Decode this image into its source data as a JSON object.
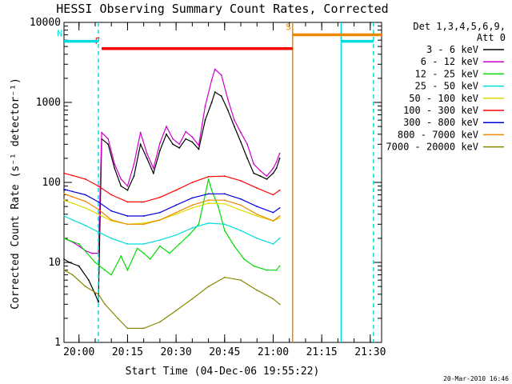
{
  "chart_data": {
    "type": "line",
    "title": "HESSI Observing Summary Count Rates, Corrected",
    "xlabel": "Start Time (04-Dec-06 19:55:22)",
    "ylabel": "Corrected Count Rate (s⁻¹ detector⁻¹)",
    "yscale": "log",
    "ylim": [
      1,
      10000
    ],
    "xlim": [
      "19:55:22",
      "21:33:30"
    ],
    "x_ticks": [
      "20:00",
      "20:15",
      "20:30",
      "20:45",
      "21:00",
      "21:15",
      "21:30"
    ],
    "y_ticks": [
      "1",
      "10",
      "100",
      "1000",
      "10000"
    ],
    "footer_timestamp": "20-Mar-2010 16:46",
    "legend": {
      "placement": "right",
      "header_lines": [
        "Det 1,3,4,5,6,9,",
        "Att 0"
      ]
    },
    "series": [
      {
        "name": "3 - 6 keV",
        "color": "#000000",
        "points": [
          [
            "19:55:22",
            11
          ],
          [
            "19:57",
            10
          ],
          [
            "20:00",
            9
          ],
          [
            "20:03",
            6
          ],
          [
            "20:05",
            4
          ],
          [
            "20:06",
            3.2
          ],
          [
            "20:07",
            350
          ],
          [
            "20:09",
            300
          ],
          [
            "20:11",
            150
          ],
          [
            "20:13",
            90
          ],
          [
            "20:15",
            80
          ],
          [
            "20:17",
            120
          ],
          [
            "20:19",
            300
          ],
          [
            "20:21",
            200
          ],
          [
            "20:23",
            130
          ],
          [
            "20:25",
            250
          ],
          [
            "20:27",
            400
          ],
          [
            "20:29",
            300
          ],
          [
            "20:31",
            270
          ],
          [
            "20:33",
            350
          ],
          [
            "20:35",
            320
          ],
          [
            "20:37",
            260
          ],
          [
            "20:39",
            600
          ],
          [
            "20:41",
            1000
          ],
          [
            "20:42",
            1350
          ],
          [
            "20:44",
            1200
          ],
          [
            "20:46",
            800
          ],
          [
            "20:48",
            500
          ],
          [
            "20:50",
            320
          ],
          [
            "20:52",
            200
          ],
          [
            "20:54",
            130
          ],
          [
            "20:56",
            120
          ],
          [
            "20:58",
            110
          ],
          [
            "21:00",
            130
          ],
          [
            "21:01",
            150
          ],
          [
            "21:02",
            200
          ]
        ]
      },
      {
        "name": "6 - 12 keV",
        "color": "#cc00cc",
        "points": [
          [
            "19:55:22",
            20
          ],
          [
            "19:58",
            18
          ],
          [
            "20:00",
            16
          ],
          [
            "20:02",
            14
          ],
          [
            "20:04",
            13
          ],
          [
            "20:06",
            13
          ],
          [
            "20:07",
            420
          ],
          [
            "20:09",
            350
          ],
          [
            "20:11",
            170
          ],
          [
            "20:13",
            110
          ],
          [
            "20:15",
            90
          ],
          [
            "20:17",
            170
          ],
          [
            "20:19",
            420
          ],
          [
            "20:21",
            230
          ],
          [
            "20:23",
            150
          ],
          [
            "20:25",
            310
          ],
          [
            "20:27",
            500
          ],
          [
            "20:29",
            350
          ],
          [
            "20:31",
            300
          ],
          [
            "20:33",
            430
          ],
          [
            "20:35",
            370
          ],
          [
            "20:37",
            290
          ],
          [
            "20:39",
            900
          ],
          [
            "20:41",
            1900
          ],
          [
            "20:42",
            2600
          ],
          [
            "20:44",
            2200
          ],
          [
            "20:46",
            1100
          ],
          [
            "20:48",
            600
          ],
          [
            "20:50",
            420
          ],
          [
            "20:52",
            300
          ],
          [
            "20:54",
            170
          ],
          [
            "20:56",
            140
          ],
          [
            "20:58",
            120
          ],
          [
            "21:00",
            150
          ],
          [
            "21:01",
            180
          ],
          [
            "21:02",
            230
          ]
        ]
      },
      {
        "name": "12 - 25 keV",
        "color": "#00dd00",
        "points": [
          [
            "19:55:22",
            20
          ],
          [
            "20:00",
            17
          ],
          [
            "20:05",
            10
          ],
          [
            "20:08",
            8
          ],
          [
            "20:10",
            7
          ],
          [
            "20:13",
            12
          ],
          [
            "20:15",
            8
          ],
          [
            "20:18",
            15
          ],
          [
            "20:20",
            13
          ],
          [
            "20:22",
            11
          ],
          [
            "20:25",
            16
          ],
          [
            "20:28",
            13
          ],
          [
            "20:31",
            17
          ],
          [
            "20:34",
            22
          ],
          [
            "20:37",
            30
          ],
          [
            "20:39",
            70
          ],
          [
            "20:40",
            110
          ],
          [
            "20:41",
            80
          ],
          [
            "20:43",
            50
          ],
          [
            "20:45",
            25
          ],
          [
            "20:48",
            16
          ],
          [
            "20:51",
            11
          ],
          [
            "20:54",
            9
          ],
          [
            "20:58",
            8
          ],
          [
            "21:01",
            8
          ],
          [
            "21:02",
            9
          ]
        ]
      },
      {
        "name": "25 - 50 keV",
        "color": "#00dddd",
        "points": [
          [
            "19:55:22",
            38
          ],
          [
            "19:58",
            34
          ],
          [
            "20:02",
            29
          ],
          [
            "20:06",
            24
          ],
          [
            "20:10",
            20
          ],
          [
            "20:15",
            17
          ],
          [
            "20:20",
            17
          ],
          [
            "20:25",
            19
          ],
          [
            "20:30",
            22
          ],
          [
            "20:35",
            27
          ],
          [
            "20:40",
            31
          ],
          [
            "20:45",
            30
          ],
          [
            "20:50",
            25
          ],
          [
            "20:55",
            20
          ],
          [
            "21:00",
            17
          ],
          [
            "21:02",
            20
          ]
        ]
      },
      {
        "name": "50 - 100 keV",
        "color": "#dddd00",
        "points": [
          [
            "19:55:22",
            60
          ],
          [
            "19:58",
            55
          ],
          [
            "20:02",
            48
          ],
          [
            "20:06",
            40
          ],
          [
            "20:10",
            33
          ],
          [
            "20:15",
            30
          ],
          [
            "20:20",
            31
          ],
          [
            "20:25",
            34
          ],
          [
            "20:30",
            40
          ],
          [
            "20:35",
            48
          ],
          [
            "20:40",
            55
          ],
          [
            "20:45",
            54
          ],
          [
            "20:50",
            45
          ],
          [
            "20:55",
            38
          ],
          [
            "21:00",
            33
          ],
          [
            "21:02",
            36
          ]
        ]
      },
      {
        "name": "100 - 300 keV",
        "color": "#ff0000",
        "points": [
          [
            "19:55:22",
            130
          ],
          [
            "19:58",
            122
          ],
          [
            "20:02",
            110
          ],
          [
            "20:06",
            90
          ],
          [
            "20:10",
            70
          ],
          [
            "20:15",
            57
          ],
          [
            "20:20",
            57
          ],
          [
            "20:25",
            65
          ],
          [
            "20:30",
            80
          ],
          [
            "20:35",
            100
          ],
          [
            "20:40",
            118
          ],
          [
            "20:45",
            120
          ],
          [
            "20:50",
            105
          ],
          [
            "20:55",
            85
          ],
          [
            "21:00",
            70
          ],
          [
            "21:02",
            80
          ]
        ]
      },
      {
        "name": "300 - 800 keV",
        "color": "#0000dd",
        "points": [
          [
            "19:55:22",
            82
          ],
          [
            "19:58",
            77
          ],
          [
            "20:02",
            70
          ],
          [
            "20:06",
            57
          ],
          [
            "20:10",
            44
          ],
          [
            "20:15",
            38
          ],
          [
            "20:20",
            38
          ],
          [
            "20:25",
            42
          ],
          [
            "20:30",
            52
          ],
          [
            "20:35",
            64
          ],
          [
            "20:40",
            72
          ],
          [
            "20:45",
            72
          ],
          [
            "20:50",
            62
          ],
          [
            "20:55",
            50
          ],
          [
            "21:00",
            42
          ],
          [
            "21:02",
            48
          ]
        ]
      },
      {
        "name": "800 - 7000 keV",
        "color": "#ee8800",
        "points": [
          [
            "19:55:22",
            72
          ],
          [
            "19:58",
            66
          ],
          [
            "20:02",
            58
          ],
          [
            "20:06",
            46
          ],
          [
            "20:10",
            34
          ],
          [
            "20:15",
            30
          ],
          [
            "20:20",
            30
          ],
          [
            "20:25",
            34
          ],
          [
            "20:30",
            42
          ],
          [
            "20:35",
            52
          ],
          [
            "20:40",
            60
          ],
          [
            "20:45",
            60
          ],
          [
            "20:50",
            52
          ],
          [
            "20:55",
            40
          ],
          [
            "21:00",
            33
          ],
          [
            "21:02",
            38
          ]
        ]
      },
      {
        "name": "7000 - 20000 keV",
        "color": "#888800",
        "points": [
          [
            "19:55:22",
            8
          ],
          [
            "19:58",
            7
          ],
          [
            "20:02",
            5
          ],
          [
            "20:06",
            4
          ],
          [
            "20:08",
            3
          ],
          [
            "20:12",
            2
          ],
          [
            "20:15",
            1.5
          ],
          [
            "20:20",
            1.5
          ],
          [
            "20:25",
            1.8
          ],
          [
            "20:30",
            2.5
          ],
          [
            "20:35",
            3.5
          ],
          [
            "20:40",
            5
          ],
          [
            "20:45",
            6.5
          ],
          [
            "20:50",
            6
          ],
          [
            "20:55",
            4.5
          ],
          [
            "21:00",
            3.5
          ],
          [
            "21:02",
            3
          ]
        ]
      }
    ],
    "flag_bars": [
      {
        "label": "F",
        "color": "#ff0000",
        "x": [
          "20:07",
          "21:06"
        ],
        "y": 4700
      },
      {
        "label": "S",
        "color": "#ee8800",
        "x": [
          "21:06",
          "21:33:30"
        ],
        "y": 7000
      },
      {
        "label": "N",
        "color": "#00dddd",
        "x": [
          "19:55:22",
          "20:06"
        ],
        "y": 5800
      },
      {
        "label": "",
        "color": "#00dddd",
        "x": [
          "21:21",
          "21:31"
        ],
        "y": 5800
      }
    ],
    "vertical_markers": [
      {
        "x": "20:06",
        "color": "#00dddd",
        "style": "dashed"
      },
      {
        "x": "21:06",
        "color": "#ee8800",
        "style": "solid"
      },
      {
        "x": "21:21",
        "color": "#00dddd",
        "style": "solid"
      },
      {
        "x": "21:31",
        "color": "#00dddd",
        "style": "dashed"
      }
    ]
  }
}
